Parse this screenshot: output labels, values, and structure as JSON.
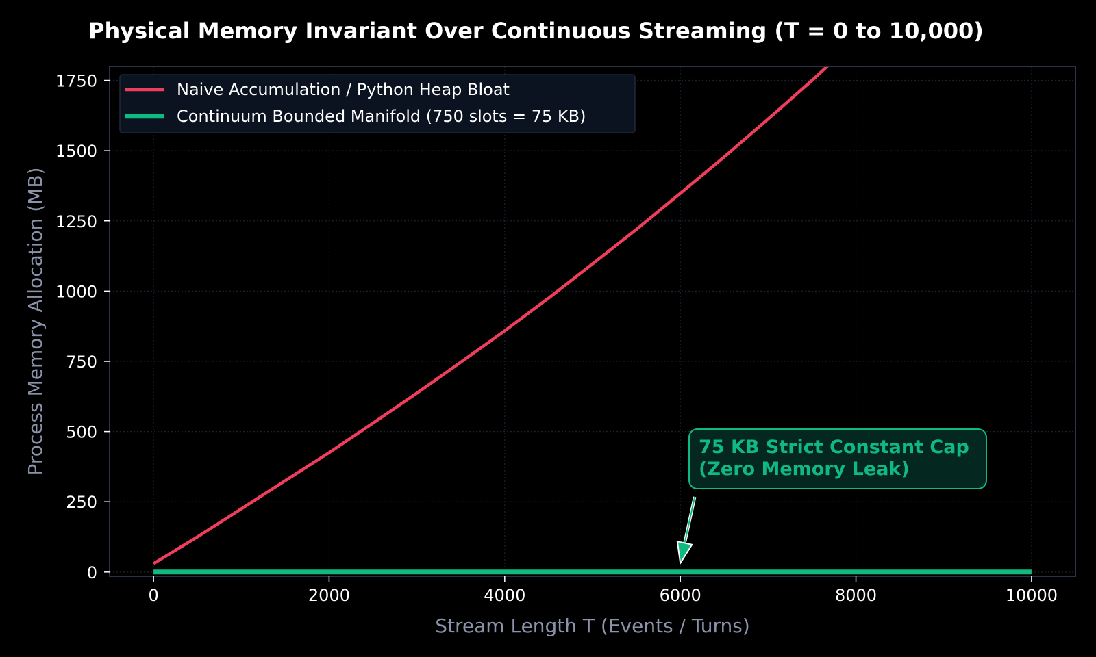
{
  "colors": {
    "background": "#000000",
    "plot_border": "#2b3445",
    "grid": "#1b2233",
    "naive": "#ef3e5b",
    "bounded": "#10b981",
    "axis_label": "#8a93aa",
    "legend_bg": "#0b1220",
    "annot_bg": "#04271f"
  },
  "chart_data": {
    "type": "line",
    "title": "Physical Memory Invariant Over Continuous Streaming (T = 0 to 10,000)",
    "xlabel": "Stream Length T (Events / Turns)",
    "ylabel": "Process Memory Allocation (MB)",
    "xlim": [
      -500,
      10500
    ],
    "ylim": [
      -15,
      1800
    ],
    "xticks": [
      0,
      2000,
      4000,
      6000,
      8000,
      10000
    ],
    "yticks": [
      0,
      250,
      500,
      750,
      1000,
      1250,
      1500,
      1750
    ],
    "grid": true,
    "legend_position": "top-left",
    "series": [
      {
        "name": "Naive Accumulation / Python Heap Bloat",
        "color": "#ef3e5b",
        "x": [
          0,
          500,
          1000,
          1500,
          2000,
          2500,
          3000,
          3500,
          4000,
          4500,
          5000,
          5500,
          6000,
          6500,
          7000,
          7500,
          7700
        ],
        "y": [
          30,
          125,
          225,
          325,
          425,
          530,
          637,
          747,
          859,
          975,
          1097,
          1220,
          1348,
          1478,
          1613,
          1750,
          1808
        ]
      },
      {
        "name": "Continuum Bounded Manifold (750 slots = 75 KB)",
        "color": "#10b981",
        "x": [
          0,
          10000
        ],
        "y": [
          0.075,
          0.075
        ]
      }
    ],
    "annotations": [
      {
        "text_lines": [
          "75 KB Strict Constant Cap",
          "(Zero Memory Leak)"
        ],
        "point": [
          6000,
          0.075
        ],
        "color": "#10b981"
      }
    ]
  }
}
